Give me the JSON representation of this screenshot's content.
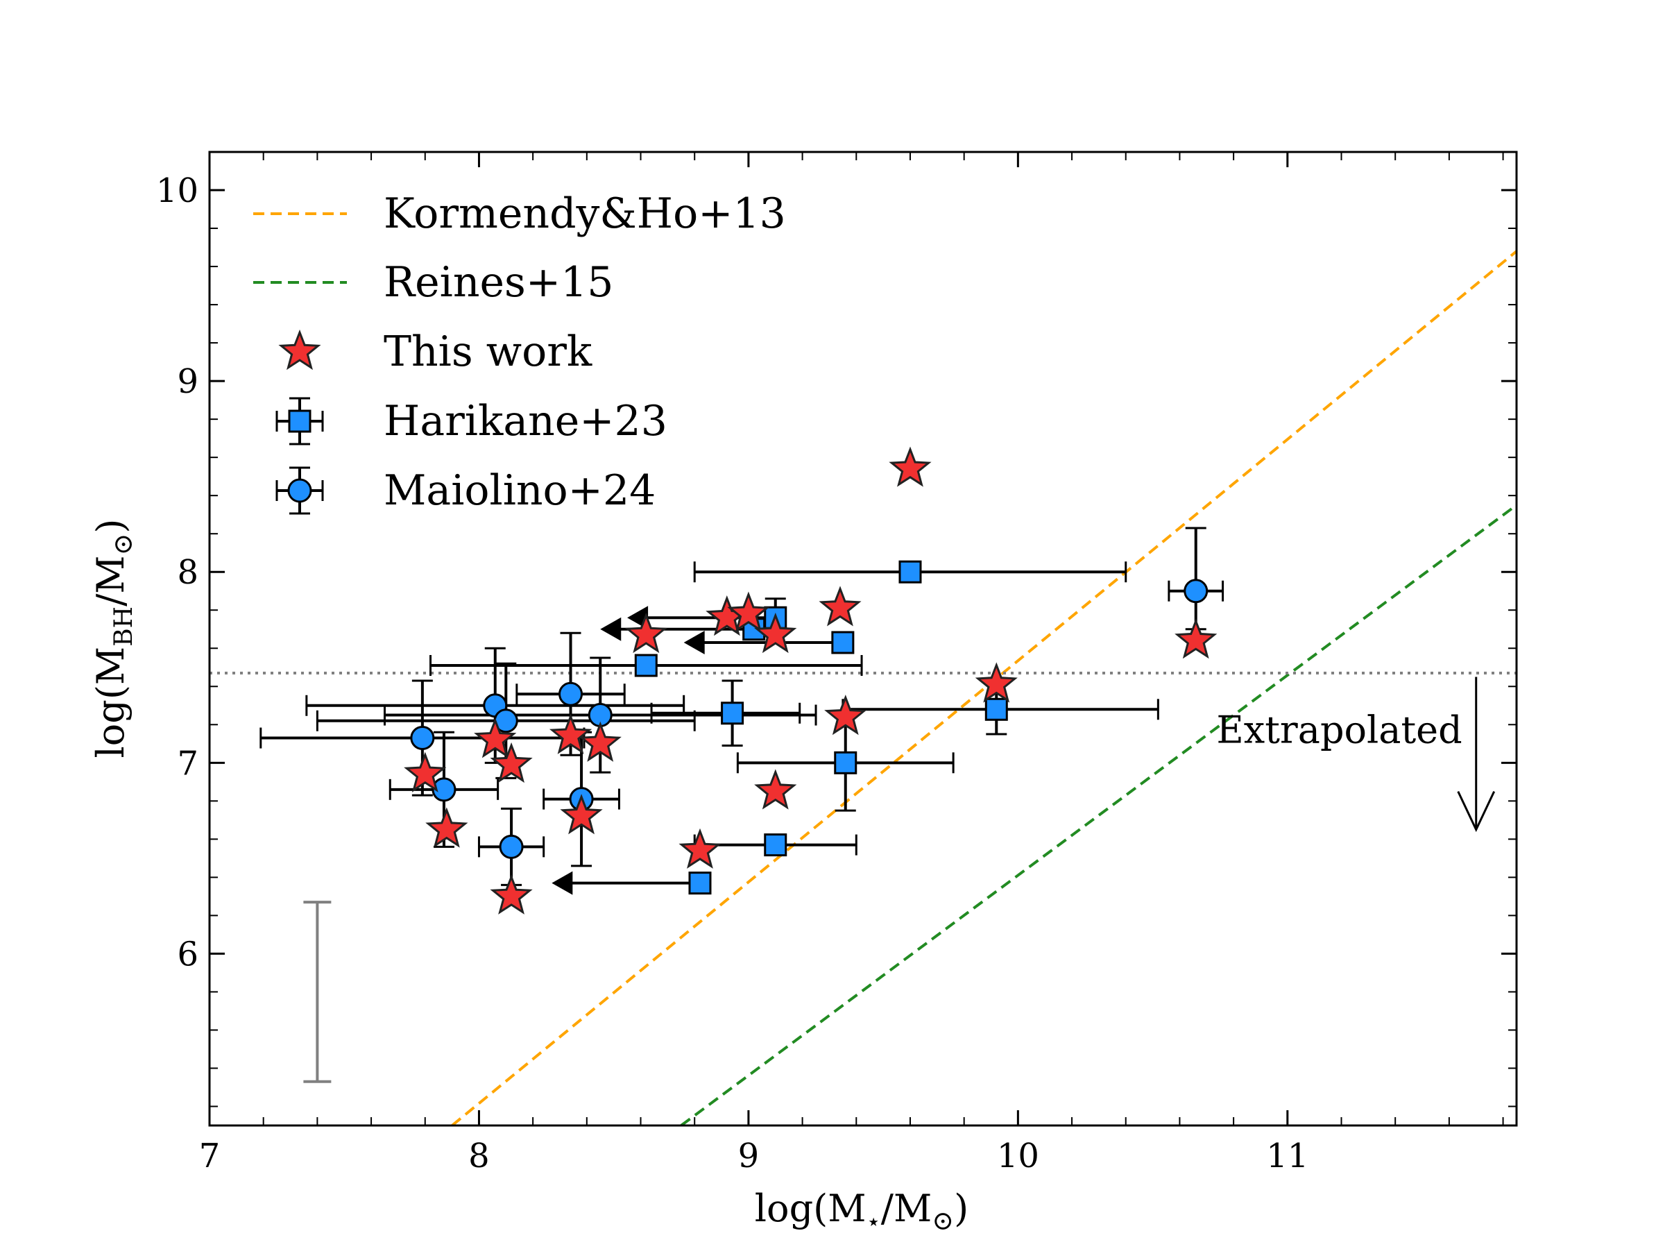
{
  "chart_data": {
    "type": "scatter",
    "xlabel": "log(M",
    "xlabel_sub": "⋆",
    "xlabel_mid": "/M",
    "xlabel_sub2": "⊙",
    "xlabel_end": ")",
    "ylabel": "log(M",
    "ylabel_sub": "BH",
    "ylabel_mid": "/M",
    "ylabel_sub2": "⊙",
    "ylabel_end": ")",
    "xlim": [
      7,
      11.85
    ],
    "ylim": [
      5.1,
      10.2
    ],
    "xticks": [
      7,
      8,
      9,
      10,
      11
    ],
    "xtick_labels": [
      "7",
      "8",
      "9",
      "10",
      "11"
    ],
    "yticks": [
      6,
      7,
      8,
      9,
      10
    ],
    "ytick_labels": [
      "6",
      "7",
      "8",
      "9",
      "10"
    ],
    "colors": {
      "kormendy": "#FFA500",
      "reines": "#228B22",
      "star": "#F03030",
      "square": "#1E90FF",
      "circle": "#1E90FF",
      "edge": "#222222",
      "threshold": "#808080",
      "typical_error": "#808080"
    },
    "legend": [
      {
        "label": "Kormendy&Ho+13",
        "marker": "dashed-orange"
      },
      {
        "label": "Reines+15",
        "marker": "dashed-green"
      },
      {
        "label": "This work",
        "marker": "star"
      },
      {
        "label": "Harikane+23",
        "marker": "square"
      },
      {
        "label": "Maiolino+24",
        "marker": "circle"
      }
    ],
    "relations": [
      {
        "name": "Kormendy&Ho+13",
        "x": [
          7.9,
          11.85
        ],
        "y": [
          5.1,
          9.68
        ]
      },
      {
        "name": "Reines+15",
        "x": [
          8.75,
          11.85
        ],
        "y": [
          5.1,
          8.35
        ]
      }
    ],
    "threshold": {
      "y": 7.47,
      "label": "Extrapolated",
      "arrow_x": 11.7,
      "arrow_y": [
        7.45,
        6.65
      ]
    },
    "typical_error": {
      "x": 7.4,
      "ylow": 5.33,
      "yhigh": 6.27
    },
    "series": [
      {
        "name": "This work",
        "marker": "star",
        "points": [
          {
            "x": 9.6,
            "y": 8.54
          },
          {
            "x": 8.92,
            "y": 7.76
          },
          {
            "x": 9.0,
            "y": 7.78
          },
          {
            "x": 9.34,
            "y": 7.81
          },
          {
            "x": 9.1,
            "y": 7.67
          },
          {
            "x": 8.62,
            "y": 7.67
          },
          {
            "x": 10.66,
            "y": 7.64
          },
          {
            "x": 9.92,
            "y": 7.41
          },
          {
            "x": 9.36,
            "y": 7.24
          },
          {
            "x": 8.06,
            "y": 7.12
          },
          {
            "x": 8.34,
            "y": 7.14
          },
          {
            "x": 8.45,
            "y": 7.1
          },
          {
            "x": 8.12,
            "y": 6.99
          },
          {
            "x": 7.8,
            "y": 6.94
          },
          {
            "x": 9.1,
            "y": 6.85
          },
          {
            "x": 8.38,
            "y": 6.72
          },
          {
            "x": 7.88,
            "y": 6.65
          },
          {
            "x": 8.82,
            "y": 6.54
          },
          {
            "x": 8.12,
            "y": 6.3
          }
        ]
      },
      {
        "name": "Harikane+23",
        "marker": "square",
        "points": [
          {
            "x": 9.6,
            "y": 8.0,
            "xerr": [
              0.8,
              0.8
            ]
          },
          {
            "x": 9.1,
            "y": 7.76,
            "yerr": [
              0.0,
              0.1
            ],
            "upper_x": 8.55
          },
          {
            "x": 9.02,
            "y": 7.7,
            "upper_x": 8.45
          },
          {
            "x": 9.35,
            "y": 7.63,
            "upper_x": 8.76
          },
          {
            "x": 8.62,
            "y": 7.51,
            "xerr": [
              0.8,
              0.8
            ]
          },
          {
            "x": 8.94,
            "y": 7.26,
            "xerr": [
              0.3,
              0.25
            ],
            "yerr": [
              0.17,
              0.17
            ]
          },
          {
            "x": 9.92,
            "y": 7.28,
            "xerr": [
              0.57,
              0.6
            ],
            "yerr": [
              0.13,
              0.13
            ]
          },
          {
            "x": 9.36,
            "y": 7.0,
            "xerr": [
              0.4,
              0.4
            ],
            "yerr": [
              0.25,
              0.25
            ]
          },
          {
            "x": 9.1,
            "y": 6.57,
            "xerr": [
              0.3,
              0.3
            ]
          },
          {
            "x": 8.82,
            "y": 6.37,
            "upper_x": 8.27
          }
        ]
      },
      {
        "name": "Maiolino+24",
        "marker": "circle",
        "points": [
          {
            "x": 10.66,
            "y": 7.9,
            "xerr": [
              0.1,
              0.1
            ],
            "yerr": [
              0.2,
              0.33
            ]
          },
          {
            "x": 8.34,
            "y": 7.36,
            "xerr": [
              0.2,
              0.2
            ],
            "yerr": [
              0.32,
              0.32
            ]
          },
          {
            "x": 8.06,
            "y": 7.3,
            "xerr": [
              0.7,
              0.7
            ],
            "yerr": [
              0.3,
              0.3
            ]
          },
          {
            "x": 8.1,
            "y": 7.22,
            "xerr": [
              0.7,
              0.7
            ],
            "yerr": [
              0.3,
              0.3
            ]
          },
          {
            "x": 8.45,
            "y": 7.25,
            "xerr": [
              0.8,
              0.8
            ],
            "yerr": [
              0.3,
              0.3
            ]
          },
          {
            "x": 7.79,
            "y": 7.13,
            "xerr": [
              0.6,
              0.6
            ],
            "yerr": [
              0.3,
              0.3
            ]
          },
          {
            "x": 7.87,
            "y": 6.86,
            "xerr": [
              0.2,
              0.2
            ],
            "yerr": [
              0.3,
              0.3
            ]
          },
          {
            "x": 8.38,
            "y": 6.81,
            "xerr": [
              0.14,
              0.14
            ],
            "yerr": [
              0.35,
              0.35
            ]
          },
          {
            "x": 8.12,
            "y": 6.56,
            "xerr": [
              0.12,
              0.12
            ],
            "yerr": [
              0.2,
              0.2
            ]
          }
        ]
      }
    ]
  }
}
